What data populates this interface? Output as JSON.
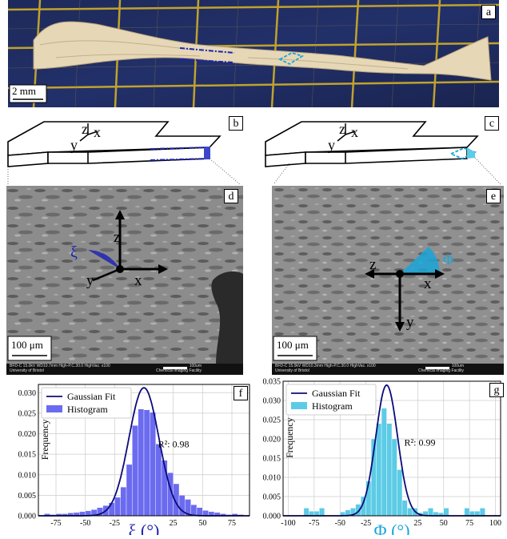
{
  "panels": {
    "a": {
      "label": "a",
      "scale_text": "2 mm"
    },
    "b": {
      "label": "b",
      "axes": [
        "z",
        "x",
        "y"
      ]
    },
    "c": {
      "label": "c",
      "axes": [
        "z",
        "x",
        "y"
      ]
    },
    "d": {
      "label": "d",
      "scale_text": "100 μm",
      "angle_symbol": "ξ",
      "axes": [
        "z",
        "y",
        "x"
      ],
      "sem_footer_left": [
        "BFD-C  15.0kV  WD10.7mm   High-P.C.30.0  HighVac.   x100",
        "University of Bristol"
      ],
      "sem_footer_right": [
        "100um",
        "Chemical Imaging Facility"
      ]
    },
    "e": {
      "label": "e",
      "scale_text": "100 μm",
      "angle_symbol": "Φ",
      "axes": [
        "z",
        "x",
        "y"
      ],
      "sem_footer_left": [
        "BFD-C  15.0kV  WD10.3mm   High-P.C.30.0  HighVac.   x100",
        "University of Bristol"
      ],
      "sem_footer_right": [
        "100um",
        "Chemical Imaging Facility"
      ]
    },
    "f": {
      "label": "f"
    },
    "g": {
      "label": "g"
    }
  },
  "colors": {
    "f_hist": "#6b6bf0",
    "g_hist": "#5ccbe6",
    "fit": "#0b0b7a",
    "d_marker": "#1d24b0",
    "e_marker": "#19a6d8"
  },
  "chart_data": [
    {
      "type": "bar",
      "panel": "f",
      "xlabel": "ξ (°)",
      "ylabel": "Frequency",
      "xlim": [
        -90,
        90
      ],
      "ylim": [
        0,
        0.032
      ],
      "xticks": [
        -75,
        -50,
        -25,
        25,
        50,
        75
      ],
      "yticks": [
        0.0,
        0.005,
        0.01,
        0.015,
        0.02,
        0.025,
        0.03
      ],
      "annotation": "R²: 0.98",
      "legend": [
        "Gaussian Fit",
        "Histogram"
      ],
      "grid": true,
      "bin_width": 5,
      "bin_starts": [
        -85,
        -80,
        -75,
        -70,
        -65,
        -60,
        -55,
        -50,
        -45,
        -40,
        -35,
        -30,
        -25,
        -20,
        -15,
        -10,
        -5,
        0,
        5,
        10,
        15,
        20,
        25,
        30,
        35,
        40,
        45,
        50,
        55,
        60,
        65,
        70,
        75,
        80,
        85
      ],
      "values": [
        0.0005,
        0.0003,
        0.0005,
        0.0005,
        0.0007,
        0.0008,
        0.001,
        0.0012,
        0.0015,
        0.002,
        0.0025,
        0.0032,
        0.0045,
        0.007,
        0.0125,
        0.022,
        0.026,
        0.0258,
        0.0252,
        0.0175,
        0.0135,
        0.0105,
        0.0078,
        0.005,
        0.004,
        0.0027,
        0.002,
        0.0013,
        0.001,
        0.0008,
        0.0005,
        0.0003,
        0.0005,
        0.0003,
        0.0
      ],
      "fit": {
        "mean": 0,
        "sd": 12.8,
        "peak": 0.0312
      }
    },
    {
      "type": "bar",
      "panel": "g",
      "xlabel": "Φ (°)",
      "ylabel": "Frequency",
      "xlim": [
        -105,
        105
      ],
      "ylim": [
        0,
        0.035
      ],
      "xticks": [
        -100,
        -75,
        -50,
        -25,
        25,
        50,
        75,
        100
      ],
      "yticks": [
        0.0,
        0.005,
        0.01,
        0.015,
        0.02,
        0.025,
        0.03,
        0.035
      ],
      "annotation": "R²: 0.99",
      "legend": [
        "Gaussian Fit",
        "Histogram"
      ],
      "grid": true,
      "bin_width": 5,
      "bin_starts": [
        -85,
        -80,
        -75,
        -70,
        -50,
        -45,
        -40,
        -35,
        -30,
        -25,
        -20,
        -15,
        -10,
        -5,
        0,
        5,
        10,
        15,
        20,
        25,
        30,
        35,
        40,
        45,
        50,
        70,
        75,
        80,
        85
      ],
      "values": [
        0.002,
        0.0012,
        0.0012,
        0.002,
        0.001,
        0.0015,
        0.002,
        0.003,
        0.005,
        0.009,
        0.02,
        0.024,
        0.028,
        0.024,
        0.02,
        0.012,
        0.004,
        0.002,
        0.002,
        0.0008,
        0.0012,
        0.002,
        0.001,
        0.0008,
        0.002,
        0.002,
        0.0012,
        0.0012,
        0.002
      ],
      "fit": {
        "mean": -5,
        "sd": 10.5,
        "peak": 0.034
      }
    }
  ]
}
